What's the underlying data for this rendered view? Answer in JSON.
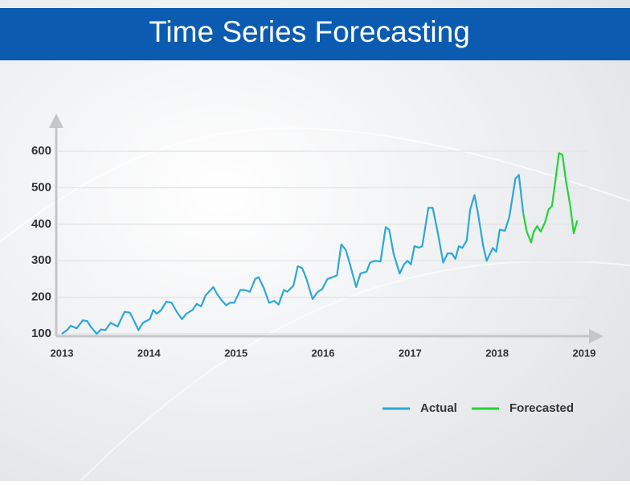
{
  "chart_data": {
    "type": "line",
    "title": "Time Series Forecasting",
    "xlim": [
      2013,
      2019
    ],
    "xticks": [
      2013,
      2014,
      2015,
      2016,
      2017,
      2018,
      2019
    ],
    "ylim": [
      100,
      600
    ],
    "yticks": [
      100,
      200,
      300,
      400,
      500,
      600
    ],
    "grid": true,
    "legend": "bottom-right",
    "series": [
      {
        "name": "Actual",
        "color": "#2ba8d8",
        "x": [
          2013.0,
          2013.06,
          2013.1,
          2013.17,
          2013.24,
          2013.29,
          2013.33,
          2013.4,
          2013.45,
          2013.5,
          2013.56,
          2013.64,
          2013.72,
          2013.78,
          2013.82,
          2013.88,
          2013.93,
          2014.01,
          2014.05,
          2014.09,
          2014.14,
          2014.2,
          2014.26,
          2014.32,
          2014.38,
          2014.43,
          2014.5,
          2014.55,
          2014.6,
          2014.65,
          2014.74,
          2014.78,
          2014.84,
          2014.89,
          2014.93,
          2014.98,
          2015.05,
          2015.1,
          2015.16,
          2015.22,
          2015.26,
          2015.32,
          2015.38,
          2015.44,
          2015.49,
          2015.55,
          2015.59,
          2015.66,
          2015.71,
          2015.76,
          2015.81,
          2015.88,
          2015.94,
          2015.99,
          2016.05,
          2016.11,
          2016.16,
          2016.21,
          2016.26,
          2016.31,
          2016.38,
          2016.43,
          2016.5,
          2016.54,
          2016.6,
          2016.66,
          2016.72,
          2016.76,
          2016.81,
          2016.88,
          2016.93,
          2016.97,
          2017.01,
          2017.05,
          2017.1,
          2017.14,
          2017.21,
          2017.26,
          2017.32,
          2017.38,
          2017.43,
          2017.48,
          2017.52,
          2017.56,
          2017.6,
          2017.65,
          2017.69,
          2017.74,
          2017.78,
          2017.84,
          2017.88,
          2017.95,
          2017.99,
          2018.03,
          2018.09,
          2018.14,
          2018.21,
          2018.25,
          2018.3
        ],
        "values": [
          100,
          110,
          122,
          115,
          137,
          135,
          120,
          100,
          112,
          110,
          130,
          120,
          160,
          158,
          140,
          110,
          130,
          140,
          165,
          155,
          165,
          188,
          185,
          160,
          140,
          155,
          165,
          182,
          175,
          205,
          228,
          210,
          190,
          178,
          185,
          185,
          220,
          220,
          215,
          250,
          255,
          225,
          185,
          190,
          180,
          220,
          215,
          232,
          285,
          280,
          250,
          195,
          215,
          222,
          250,
          255,
          260,
          345,
          330,
          290,
          228,
          265,
          270,
          295,
          300,
          298,
          392,
          385,
          320,
          265,
          290,
          300,
          290,
          340,
          336,
          340,
          445,
          445,
          375,
          295,
          320,
          320,
          305,
          340,
          335,
          355,
          440,
          480,
          430,
          340,
          300,
          335,
          325,
          385,
          382,
          420,
          525,
          535,
          430
        ]
      },
      {
        "name": "Forecasted",
        "color": "#22d33a",
        "x": [
          2018.3,
          2018.34,
          2018.39,
          2018.42,
          2018.46,
          2018.5,
          2018.55,
          2018.59,
          2018.63,
          2018.67,
          2018.71,
          2018.75,
          2018.79,
          2018.84,
          2018.88,
          2018.92
        ],
        "values": [
          430,
          380,
          350,
          380,
          395,
          380,
          405,
          440,
          450,
          520,
          595,
          590,
          520,
          450,
          375,
          410
        ]
      }
    ]
  }
}
